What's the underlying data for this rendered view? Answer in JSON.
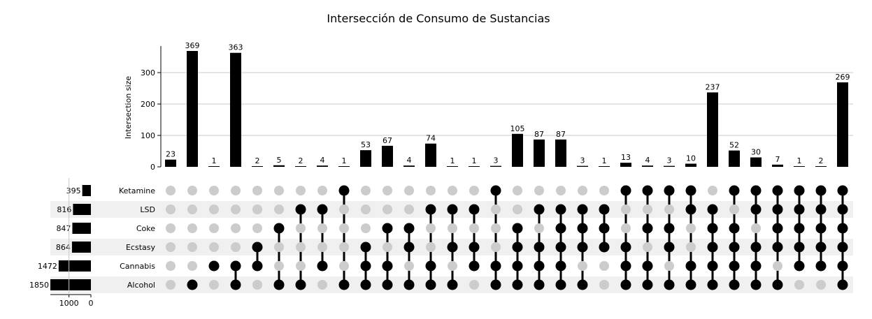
{
  "chart_data": {
    "type": "upset",
    "title": "Intersección de Consumo de Sustancias",
    "ylabel": "Intersection size",
    "ylim": [
      0,
      369
    ],
    "yticks": [
      0,
      100,
      200,
      300
    ],
    "grid": true,
    "set_size_ticks": [
      "1000",
      "0"
    ],
    "sets": [
      {
        "name": "Ketamine",
        "size": 395
      },
      {
        "name": "LSD",
        "size": 816
      },
      {
        "name": "Coke",
        "size": 847
      },
      {
        "name": "Ecstasy",
        "size": 864
      },
      {
        "name": "Cannabis",
        "size": 1472
      },
      {
        "name": "Alcohol",
        "size": 1850
      }
    ],
    "intersections": [
      {
        "value": 23,
        "members": []
      },
      {
        "value": 369,
        "members": [
          "Alcohol"
        ]
      },
      {
        "value": 1,
        "members": [
          "Cannabis"
        ]
      },
      {
        "value": 363,
        "members": [
          "Cannabis",
          "Alcohol"
        ]
      },
      {
        "value": 2,
        "members": [
          "Ecstasy",
          "Cannabis"
        ]
      },
      {
        "value": 5,
        "members": [
          "Coke",
          "Alcohol"
        ]
      },
      {
        "value": 2,
        "members": [
          "LSD",
          "Alcohol"
        ]
      },
      {
        "value": 4,
        "members": [
          "LSD",
          "Cannabis"
        ]
      },
      {
        "value": 1,
        "members": [
          "Ketamine",
          "Alcohol"
        ]
      },
      {
        "value": 53,
        "members": [
          "Ecstasy",
          "Cannabis",
          "Alcohol"
        ]
      },
      {
        "value": 67,
        "members": [
          "Coke",
          "Cannabis",
          "Alcohol"
        ]
      },
      {
        "value": 4,
        "members": [
          "Coke",
          "Ecstasy",
          "Alcohol"
        ]
      },
      {
        "value": 74,
        "members": [
          "LSD",
          "Cannabis",
          "Alcohol"
        ]
      },
      {
        "value": 1,
        "members": [
          "LSD",
          "Ecstasy",
          "Alcohol"
        ]
      },
      {
        "value": 1,
        "members": [
          "LSD",
          "Ecstasy",
          "Cannabis"
        ]
      },
      {
        "value": 3,
        "members": [
          "Ketamine",
          "Cannabis",
          "Alcohol"
        ]
      },
      {
        "value": 105,
        "members": [
          "Coke",
          "Ecstasy",
          "Cannabis",
          "Alcohol"
        ]
      },
      {
        "value": 87,
        "members": [
          "LSD",
          "Ecstasy",
          "Cannabis",
          "Alcohol"
        ]
      },
      {
        "value": 87,
        "members": [
          "LSD",
          "Coke",
          "Ecstasy",
          "Cannabis",
          "Alcohol"
        ]
      },
      {
        "value": 3,
        "members": [
          "LSD",
          "Coke",
          "Ecstasy",
          "Alcohol"
        ]
      },
      {
        "value": 1,
        "members": [
          "LSD",
          "Coke",
          "Ecstasy"
        ]
      },
      {
        "value": 13,
        "members": [
          "Ketamine",
          "Ecstasy",
          "Cannabis",
          "Alcohol"
        ]
      },
      {
        "value": 4,
        "members": [
          "Ketamine",
          "Coke",
          "Cannabis",
          "Alcohol"
        ]
      },
      {
        "value": 3,
        "members": [
          "Ketamine",
          "Coke",
          "Ecstasy",
          "Alcohol"
        ]
      },
      {
        "value": 10,
        "members": [
          "Ketamine",
          "LSD",
          "Cannabis",
          "Alcohol"
        ]
      },
      {
        "value": 237,
        "members": [
          "LSD",
          "Coke",
          "Ecstasy",
          "Cannabis",
          "Alcohol"
        ]
      },
      {
        "value": 52,
        "members": [
          "Ketamine",
          "Coke",
          "Ecstasy",
          "Cannabis",
          "Alcohol"
        ]
      },
      {
        "value": 30,
        "members": [
          "Ketamine",
          "LSD",
          "Ecstasy",
          "Cannabis",
          "Alcohol"
        ]
      },
      {
        "value": 7,
        "members": [
          "Ketamine",
          "LSD",
          "Coke",
          "Ecstasy",
          "Alcohol"
        ]
      },
      {
        "value": 1,
        "members": [
          "Ketamine",
          "LSD",
          "Coke",
          "Ecstasy",
          "Cannabis"
        ]
      },
      {
        "value": 2,
        "members": [
          "Ketamine",
          "LSD",
          "Coke",
          "Ecstasy",
          "Cannabis"
        ]
      },
      {
        "value": 269,
        "members": [
          "Ketamine",
          "LSD",
          "Coke",
          "Ecstasy",
          "Cannabis",
          "Alcohol"
        ]
      }
    ],
    "colors": {
      "bar": "#000000",
      "dot_active": "#000000",
      "dot_inactive": "#cccccc",
      "stripe": "#f0f0f0",
      "grid": "#c8c8c8"
    }
  }
}
